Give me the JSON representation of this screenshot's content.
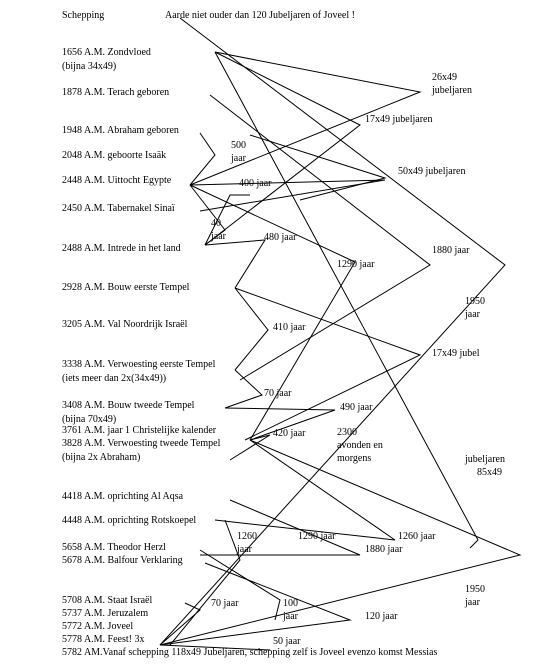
{
  "header": {
    "start": "Schepping",
    "title": "Aarde niet ouder dan 120 Jubeljaren of Joveel !"
  },
  "events": [
    {
      "label": "1656 A.M. Zondvloed",
      "note": "(bijna 34x49)"
    },
    {
      "label": "1878 A.M. Terach geboren"
    },
    {
      "label": "1948 A.M. Abraham geboren"
    },
    {
      "label": "2048 A.M. geboorte Isaäk"
    },
    {
      "label": "2448 A.M. Uittocht Egypte"
    },
    {
      "label": "2450 A.M. Tabernakel Sinaï"
    },
    {
      "label": "2488 A.M. Intrede in het land"
    },
    {
      "label": "2928 A.M. Bouw eerste Tempel"
    },
    {
      "label": "3205 A.M. Val Noordrijk Israël"
    },
    {
      "label": "3338 A.M. Verwoesting eerste Tempel",
      "note": "(iets meer dan 2x(34x49))"
    },
    {
      "label": "3408 A.M. Bouw tweede Tempel",
      "note": "(bijna 70x49)"
    },
    {
      "label": "3761 A.M. jaar 1 Christelijke kalender"
    },
    {
      "label": "3828 A.M. Verwoesting tweede Tempel",
      "note": "(bijna 2x Abraham)"
    },
    {
      "label": "4418 A.M. oprichting Al Aqsa"
    },
    {
      "label": "4448 A.M. oprichting Rotskoepel"
    },
    {
      "label": "5658 A.M. Theodor Herzl"
    },
    {
      "label": "5678 A.M. Balfour Verklaring"
    },
    {
      "label": "5708 A.M. Staat Israël"
    },
    {
      "label": "5737 A.M. Jeruzalem"
    },
    {
      "label": "5772 A.M. Joveel"
    },
    {
      "label": "5778 A.M. Feest! 3x"
    },
    {
      "label": "5782 AM.Vanaf schepping 118x49 Jubeljaren, schepping zelf is Joveel evenzo komst Messias"
    }
  ],
  "spans": [
    [
      "26x49",
      "jubeljaren"
    ],
    [
      "17x49 jubeljaren"
    ],
    [
      "500",
      "jaar"
    ],
    [
      "50x49 jubeljaren"
    ],
    [
      "400 jaar"
    ],
    [
      "40",
      "jaar"
    ],
    [
      "480 jaar"
    ],
    [
      "1880 jaar"
    ],
    [
      "1290 jaar"
    ],
    [
      "1950",
      "jaar"
    ],
    [
      "410 jaar"
    ],
    [
      "17x49 jubel"
    ],
    [
      "70 jaar"
    ],
    [
      "490 jaar"
    ],
    [
      "420 jaar"
    ],
    [
      "2300",
      "avonden en",
      "morgens"
    ],
    [
      "jubeljaren",
      "85x49"
    ],
    [
      "1260",
      "jaar"
    ],
    [
      "1290 jaar"
    ],
    [
      "1260 jaar"
    ],
    [
      "1880 jaar"
    ],
    [
      "1950",
      "jaar"
    ],
    [
      "70 jaar"
    ],
    [
      "100",
      "jaar"
    ],
    [
      "120 jaar"
    ],
    [
      "50 jaar"
    ]
  ]
}
